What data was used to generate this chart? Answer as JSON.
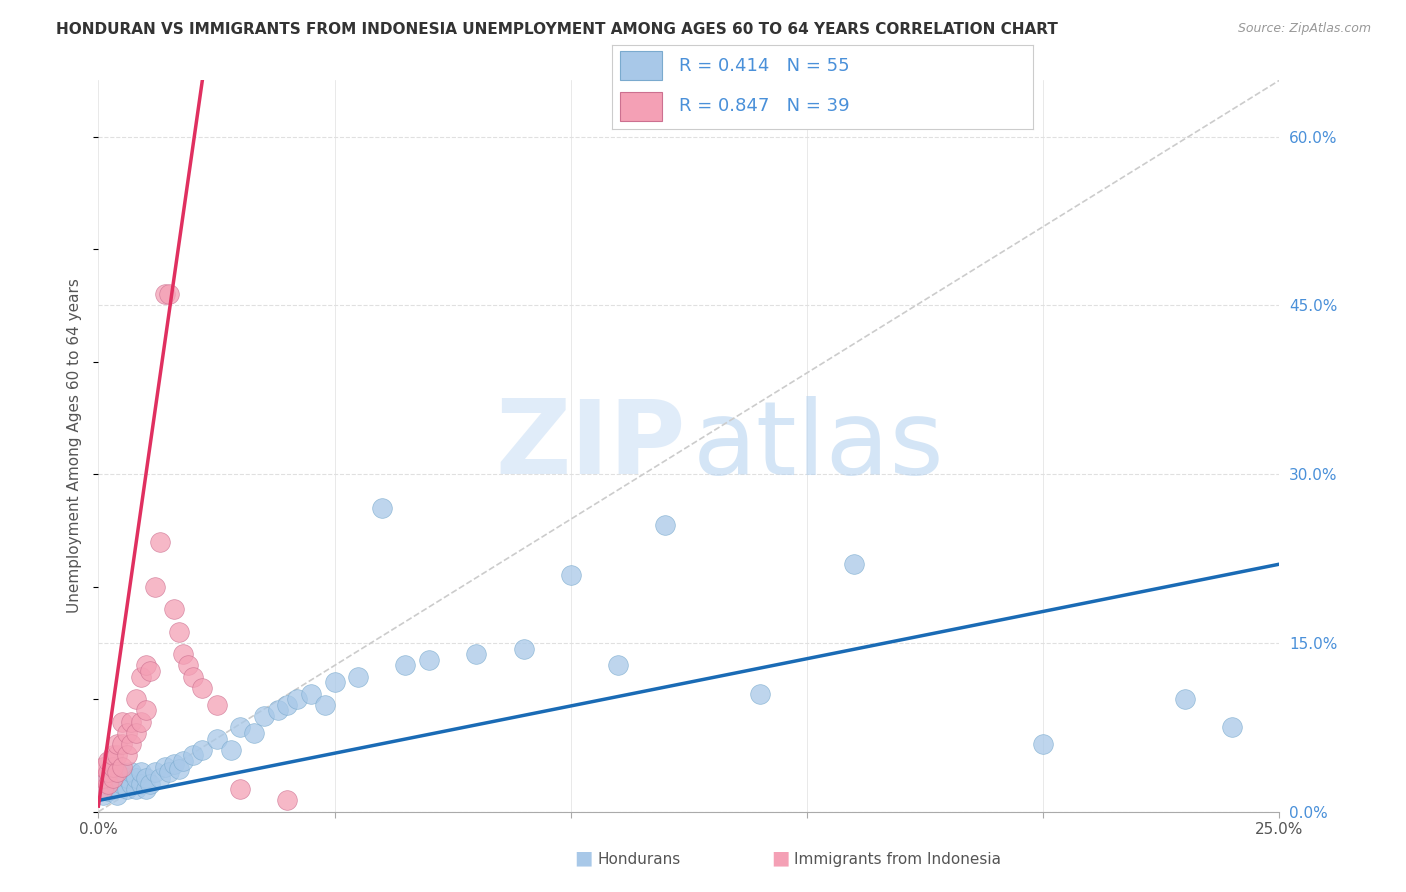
{
  "title": "HONDURAN VS IMMIGRANTS FROM INDONESIA UNEMPLOYMENT AMONG AGES 60 TO 64 YEARS CORRELATION CHART",
  "source": "Source: ZipAtlas.com",
  "ylabel": "Unemployment Among Ages 60 to 64 years",
  "xlim": [
    0.0,
    0.25
  ],
  "ylim": [
    0.0,
    0.65
  ],
  "xticks": [
    0.0,
    0.05,
    0.1,
    0.15,
    0.2,
    0.25
  ],
  "ytick_positions": [
    0.0,
    0.15,
    0.3,
    0.45,
    0.6
  ],
  "ytick_labels": [
    "0.0%",
    "15.0%",
    "30.0%",
    "45.0%",
    "60.0%"
  ],
  "blue_R": 0.414,
  "blue_N": 55,
  "pink_R": 0.847,
  "pink_N": 39,
  "blue_color": "#a8c8e8",
  "pink_color": "#f4a0b5",
  "blue_line_color": "#1a6bb5",
  "pink_line_color": "#e03060",
  "ref_line_color": "#cccccc",
  "legend_text_color": "#4a90d9",
  "title_color": "#333333",
  "grid_color": "#e0e0e0",
  "blue_x": [
    0.001,
    0.001,
    0.002,
    0.002,
    0.003,
    0.003,
    0.004,
    0.004,
    0.005,
    0.005,
    0.006,
    0.006,
    0.007,
    0.007,
    0.008,
    0.008,
    0.009,
    0.009,
    0.01,
    0.01,
    0.011,
    0.012,
    0.013,
    0.014,
    0.015,
    0.016,
    0.017,
    0.018,
    0.02,
    0.022,
    0.025,
    0.028,
    0.03,
    0.033,
    0.035,
    0.038,
    0.04,
    0.042,
    0.045,
    0.048,
    0.05,
    0.055,
    0.06,
    0.065,
    0.07,
    0.08,
    0.09,
    0.1,
    0.11,
    0.12,
    0.14,
    0.16,
    0.2,
    0.23,
    0.24
  ],
  "blue_y": [
    0.015,
    0.025,
    0.018,
    0.03,
    0.02,
    0.028,
    0.015,
    0.022,
    0.025,
    0.035,
    0.02,
    0.03,
    0.025,
    0.035,
    0.02,
    0.03,
    0.025,
    0.035,
    0.02,
    0.03,
    0.025,
    0.035,
    0.03,
    0.04,
    0.035,
    0.042,
    0.038,
    0.045,
    0.05,
    0.055,
    0.065,
    0.055,
    0.075,
    0.07,
    0.085,
    0.09,
    0.095,
    0.1,
    0.105,
    0.095,
    0.115,
    0.12,
    0.27,
    0.13,
    0.135,
    0.14,
    0.145,
    0.21,
    0.13,
    0.255,
    0.105,
    0.22,
    0.06,
    0.1,
    0.075
  ],
  "pink_x": [
    0.001,
    0.001,
    0.001,
    0.002,
    0.002,
    0.002,
    0.003,
    0.003,
    0.003,
    0.004,
    0.004,
    0.004,
    0.005,
    0.005,
    0.005,
    0.006,
    0.006,
    0.007,
    0.007,
    0.008,
    0.008,
    0.009,
    0.009,
    0.01,
    0.01,
    0.011,
    0.012,
    0.013,
    0.014,
    0.015,
    0.016,
    0.017,
    0.018,
    0.019,
    0.02,
    0.022,
    0.025,
    0.03,
    0.04
  ],
  "pink_y": [
    0.02,
    0.03,
    0.04,
    0.025,
    0.035,
    0.045,
    0.03,
    0.04,
    0.05,
    0.035,
    0.05,
    0.06,
    0.04,
    0.06,
    0.08,
    0.05,
    0.07,
    0.06,
    0.08,
    0.07,
    0.1,
    0.08,
    0.12,
    0.09,
    0.13,
    0.125,
    0.2,
    0.24,
    0.46,
    0.46,
    0.18,
    0.16,
    0.14,
    0.13,
    0.12,
    0.11,
    0.095,
    0.02,
    0.01
  ],
  "blue_line_x0": 0.0,
  "blue_line_x1": 0.25,
  "blue_line_y0": 0.01,
  "blue_line_y1": 0.22,
  "pink_line_x0": 0.0,
  "pink_line_y0": 0.005,
  "pink_line_x1": 0.022,
  "pink_line_y1": 0.65,
  "ref_line_x0": 0.0,
  "ref_line_y0": 0.0,
  "ref_line_x1": 0.25,
  "ref_line_y1": 0.65
}
